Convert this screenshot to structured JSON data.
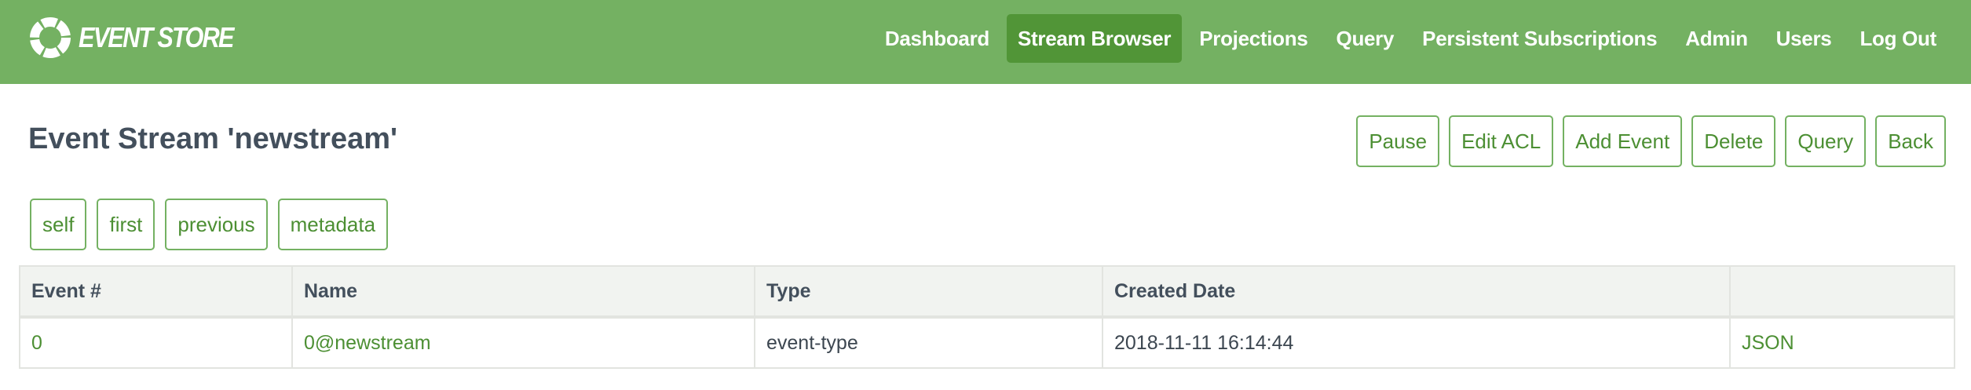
{
  "header": {
    "logo_text": "EVENT STORE",
    "nav": [
      {
        "label": "Dashboard",
        "active": false
      },
      {
        "label": "Stream Browser",
        "active": true
      },
      {
        "label": "Projections",
        "active": false
      },
      {
        "label": "Query",
        "active": false
      },
      {
        "label": "Persistent Subscriptions",
        "active": false
      },
      {
        "label": "Admin",
        "active": false
      },
      {
        "label": "Users",
        "active": false
      },
      {
        "label": "Log Out",
        "active": false
      }
    ]
  },
  "page": {
    "title": "Event Stream 'newstream'",
    "actions": [
      "Pause",
      "Edit ACL",
      "Add Event",
      "Delete",
      "Query",
      "Back"
    ],
    "links": [
      "self",
      "first",
      "previous",
      "metadata"
    ]
  },
  "table": {
    "columns": [
      "Event #",
      "Name",
      "Type",
      "Created Date",
      ""
    ],
    "rows": [
      {
        "event_number": "0",
        "name": "0@newstream",
        "type": "event-type",
        "created": "2018-11-11 16:14:44",
        "json": "JSON"
      }
    ]
  },
  "colors": {
    "brand": "#74b162",
    "active_nav": "#519537",
    "link": "#4c8f33",
    "heading": "#434f5c"
  }
}
